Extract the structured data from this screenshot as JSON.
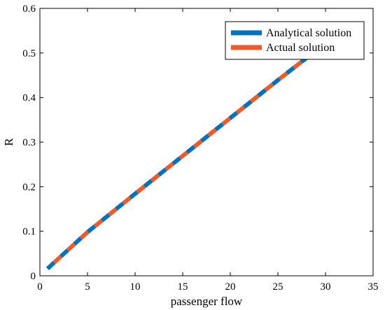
{
  "chart_data": {
    "type": "line",
    "title": "",
    "xlabel": "passenger flow",
    "ylabel": "R",
    "xlim": [
      0,
      35
    ],
    "ylim": [
      0,
      0.6
    ],
    "xticks": [
      0,
      5,
      10,
      15,
      20,
      25,
      30,
      35
    ],
    "yticks": [
      0,
      0.1,
      0.2,
      0.3,
      0.4,
      0.5,
      0.6
    ],
    "xtick_labels": [
      "0",
      "5",
      "10",
      "15",
      "20",
      "25",
      "30",
      "35"
    ],
    "ytick_labels": [
      "0",
      "0.1",
      "0.2",
      "0.3",
      "0.4",
      "0.5",
      "0.6"
    ],
    "grid": false,
    "legend_position": "top-right",
    "series": [
      {
        "name": "Analytical solution",
        "color": "#0072BD",
        "style": "dashed",
        "x": [
          0.8,
          5,
          10,
          15,
          20,
          25,
          30.5
        ],
        "y": [
          0.016,
          0.098,
          0.184,
          0.269,
          0.354,
          0.439,
          0.53
        ]
      },
      {
        "name": "Actual solution",
        "color": "#F05A28",
        "style": "dashed",
        "x": [
          0.8,
          5,
          10,
          15,
          20,
          25,
          30.5
        ],
        "y": [
          0.016,
          0.098,
          0.184,
          0.269,
          0.354,
          0.439,
          0.53
        ]
      }
    ]
  }
}
